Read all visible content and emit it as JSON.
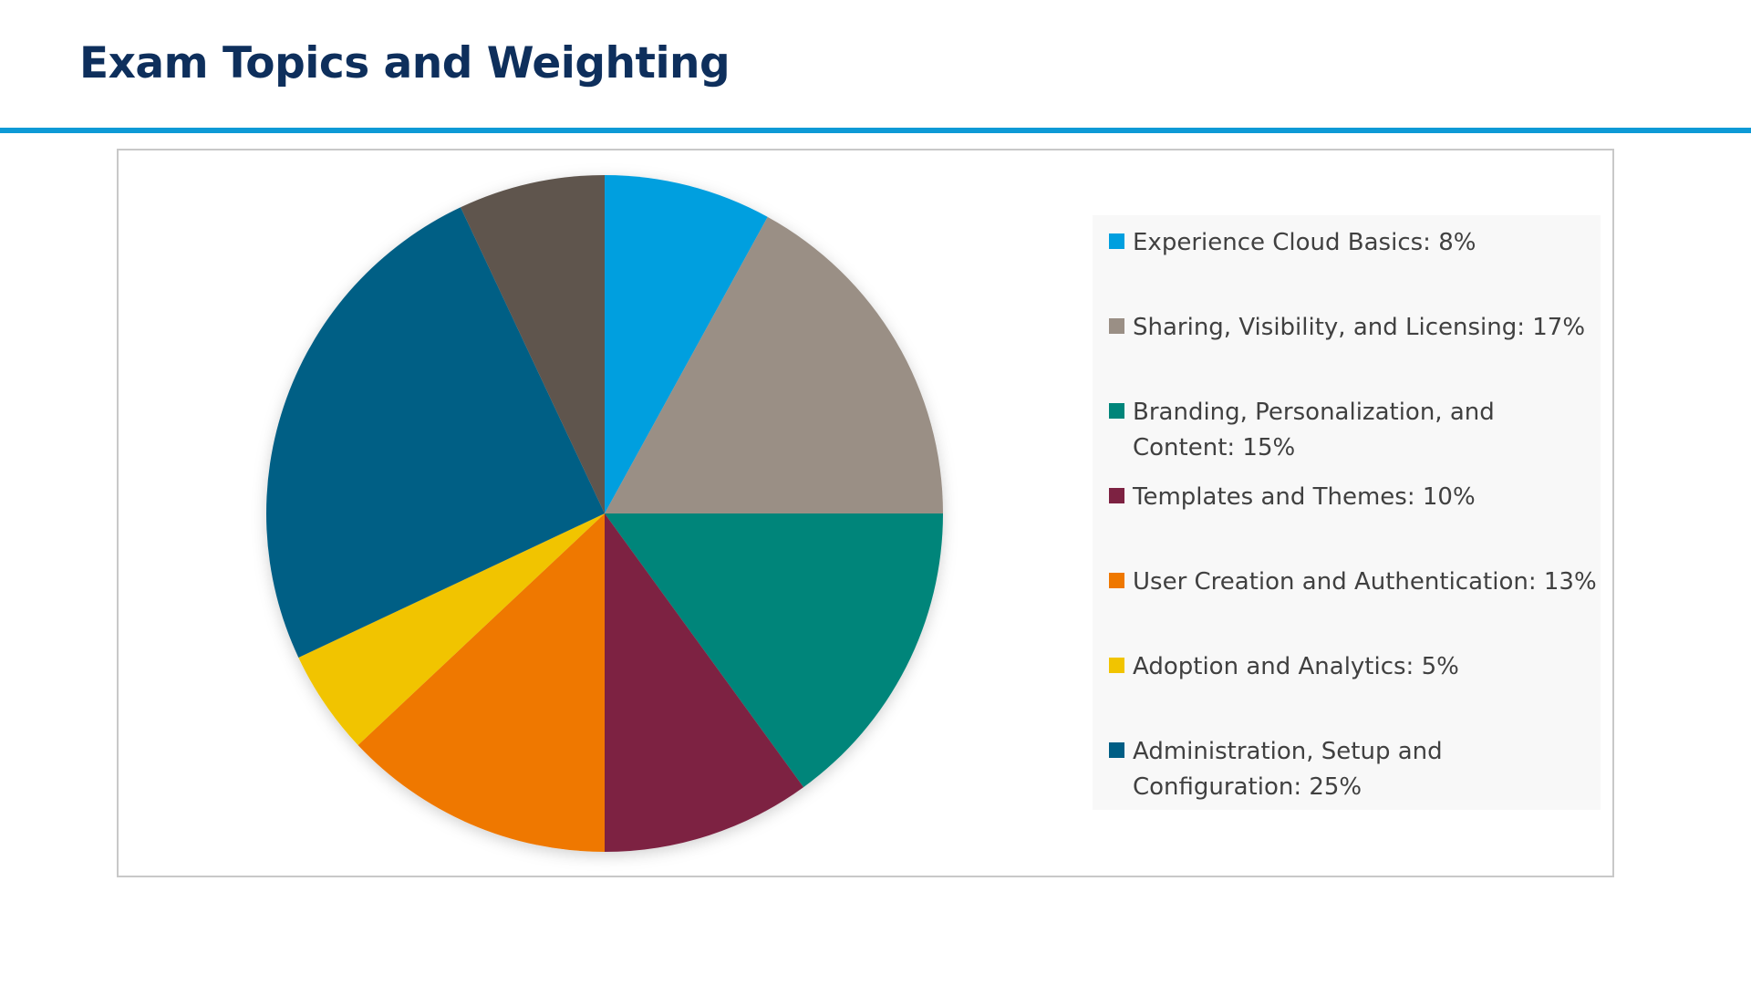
{
  "page": {
    "title": "Exam Topics and Weighting",
    "accent_color": "#0d9ad6",
    "title_color": "#0e2f5c"
  },
  "chart_data": {
    "type": "pie",
    "start_angle_deg": 0,
    "direction": "clockwise",
    "legend_position": "right",
    "slices": [
      {
        "label": "Experience Cloud Basics: 8%",
        "category": "Experience Cloud Basics",
        "value": 8,
        "color": "#009fdf"
      },
      {
        "label": "Sharing, Visibility, and Licensing: 17%",
        "category": "Sharing, Visibility, and Licensing",
        "value": 17,
        "color": "#9a8f85"
      },
      {
        "label": "Branding, Personalization, and Content: 15%",
        "category": "Branding, Personalization, and Content",
        "value": 15,
        "color": "#00857a"
      },
      {
        "label": "Templates and Themes: 10%",
        "category": "Templates and Themes",
        "value": 10,
        "color": "#7d2242"
      },
      {
        "label": "User Creation and Authentication: 13%",
        "category": "User Creation and Authentication",
        "value": 13,
        "color": "#ef7800"
      },
      {
        "label": "Adoption and Analytics: 5%",
        "category": "Adoption and Analytics",
        "value": 5,
        "color": "#f1c400"
      },
      {
        "label": "Administration, Setup and Configuration: 25%",
        "category": "Administration, Setup and Configuration",
        "value": 25,
        "color": "#005e85"
      },
      {
        "label": "",
        "category": "",
        "value": 7,
        "color": "#5f554d"
      }
    ]
  }
}
